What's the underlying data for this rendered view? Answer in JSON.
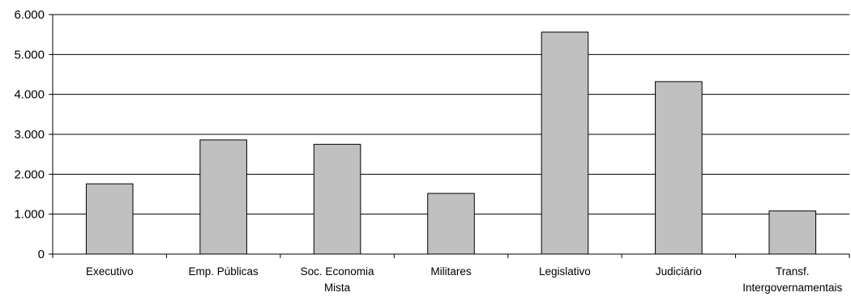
{
  "chart_data": {
    "type": "bar",
    "title": "",
    "xlabel": "",
    "ylabel": "",
    "categories": [
      [
        "Executivo"
      ],
      [
        "Emp. Públicas"
      ],
      [
        "Soc. Economia",
        "Mista"
      ],
      [
        "Militares"
      ],
      [
        "Legislativo"
      ],
      [
        "Judiciário"
      ],
      [
        "Transf.",
        "Intergovernamentais"
      ]
    ],
    "values": [
      1760,
      2860,
      2750,
      1520,
      5560,
      4320,
      1080
    ],
    "ylim": [
      0,
      6000
    ],
    "yticks": [
      0,
      1000,
      2000,
      3000,
      4000,
      5000,
      6000
    ],
    "ytick_labels": [
      "0",
      "1.000",
      "2.000",
      "3.000",
      "4.000",
      "5.000",
      "6.000"
    ],
    "grid": "horizontal",
    "legend": "none",
    "colors": {
      "bar_fill": "#c0c0c0",
      "bar_stroke": "#000000",
      "gridline": "#000000",
      "axis": "#000000",
      "background": "#ffffff"
    }
  }
}
